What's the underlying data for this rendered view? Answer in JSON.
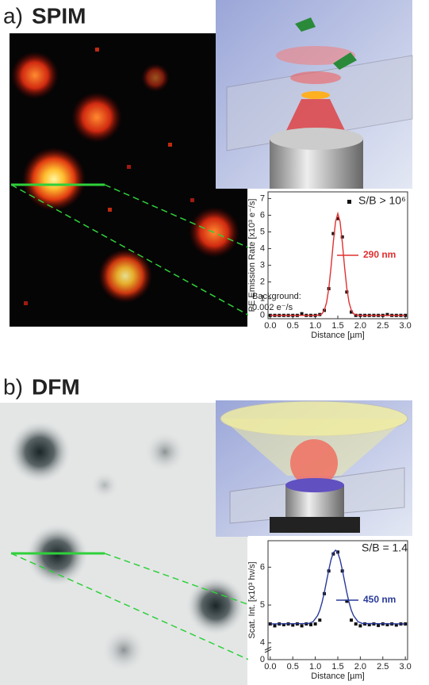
{
  "chart_data": [
    {
      "type": "line",
      "panel": "a)",
      "title": "SPIM",
      "xlabel": "Distance [µm]",
      "ylabel": "PE Emission Rate [x10³ e⁻/s]",
      "xlim": [
        -0.05,
        3.05
      ],
      "ylim": [
        -0.2,
        7.4
      ],
      "xticks": [
        {
          "value": 0,
          "label": "0.0"
        },
        {
          "value": 0.5,
          "label": "0.5"
        },
        {
          "value": 1,
          "label": "1.0"
        },
        {
          "value": 1.5,
          "label": "1.5"
        },
        {
          "value": 2,
          "label": "2.0"
        },
        {
          "value": 2.5,
          "label": "2.5"
        },
        {
          "value": 3,
          "label": "3.0"
        }
      ],
      "yticks": [
        0,
        1,
        2,
        3,
        4,
        5,
        6,
        7
      ],
      "series": [
        {
          "name": "S/B > 10⁶",
          "color": "#111111",
          "marker": "square",
          "x": [
            0,
            0.1,
            0.2,
            0.3,
            0.4,
            0.5,
            0.6,
            0.7,
            0.8,
            0.9,
            1.0,
            1.1,
            1.2,
            1.3,
            1.4,
            1.5,
            1.6,
            1.7,
            1.8,
            1.9,
            2.0,
            2.1,
            2.2,
            2.3,
            2.4,
            2.5,
            2.6,
            2.7,
            2.8,
            2.9,
            3.0
          ],
          "values": [
            0,
            0,
            0,
            0,
            0,
            0,
            0,
            0.1,
            0,
            0,
            0,
            0.05,
            0.3,
            1.6,
            4.9,
            5.8,
            4.7,
            1.4,
            0.2,
            0,
            0,
            0,
            0,
            0,
            0,
            0,
            0.05,
            0,
            0,
            0,
            0
          ]
        },
        {
          "color": "#e03030",
          "marker": "line",
          "x": [
            0,
            1.0,
            1.1,
            1.15,
            1.2,
            1.25,
            1.3,
            1.35,
            1.4,
            1.45,
            1.5,
            1.55,
            1.6,
            1.65,
            1.7,
            1.75,
            1.8,
            1.85,
            1.9,
            2.0,
            3.0
          ],
          "values": [
            0,
            0,
            0.03,
            0.1,
            0.31,
            0.77,
            1.62,
            2.9,
            4.38,
            5.61,
            6.1,
            5.61,
            4.38,
            2.9,
            1.62,
            0.77,
            0.31,
            0.1,
            0.03,
            0,
            0
          ]
        }
      ],
      "annotations": [
        "290 nm",
        "Background:",
        "0.002 e⁻/s"
      ]
    },
    {
      "type": "line",
      "panel": "b)",
      "title": "DFM",
      "xlabel": "Distance [µm]",
      "ylabel": "Scat. Int. [x10³ hν/s]",
      "xlim": [
        -0.05,
        3.05
      ],
      "ylim": [
        0,
        6.7
      ],
      "y_break": [
        0.25,
        3.85
      ],
      "xticks": [
        {
          "value": 0,
          "label": "0.0"
        },
        {
          "value": 0.5,
          "label": "0.5"
        },
        {
          "value": 1,
          "label": "1.0"
        },
        {
          "value": 1.5,
          "label": "1.5"
        },
        {
          "value": 2,
          "label": "2.0"
        },
        {
          "value": 2.5,
          "label": "2.5"
        },
        {
          "value": 3,
          "label": "3.0"
        }
      ],
      "yticks": [
        0,
        4,
        5,
        6
      ],
      "series": [
        {
          "color": "#111111",
          "marker": "square",
          "x": [
            0,
            0.1,
            0.2,
            0.3,
            0.4,
            0.5,
            0.6,
            0.7,
            0.8,
            0.9,
            1.0,
            1.1,
            1.2,
            1.3,
            1.4,
            1.5,
            1.6,
            1.7,
            1.8,
            1.9,
            2.0,
            2.1,
            2.2,
            2.3,
            2.4,
            2.5,
            2.6,
            2.7,
            2.8,
            2.9,
            3.0
          ],
          "values": [
            4.5,
            4.45,
            4.5,
            4.48,
            4.5,
            4.47,
            4.5,
            4.45,
            4.5,
            4.48,
            4.5,
            4.6,
            5.3,
            5.9,
            6.35,
            6.4,
            5.9,
            5.1,
            4.6,
            4.5,
            4.45,
            4.5,
            4.48,
            4.5,
            4.46,
            4.5,
            4.48,
            4.5,
            4.47,
            4.5,
            4.5
          ]
        },
        {
          "color": "#2a3a9a",
          "marker": "line",
          "x": [
            0,
            0.85,
            0.95,
            1.05,
            1.1,
            1.15,
            1.2,
            1.25,
            1.3,
            1.35,
            1.4,
            1.45,
            1.5,
            1.55,
            1.6,
            1.65,
            1.7,
            1.75,
            1.8,
            1.85,
            1.95,
            2.05,
            3.0
          ],
          "values": [
            4.5,
            4.51,
            4.56,
            4.72,
            4.86,
            5.07,
            5.33,
            5.63,
            5.93,
            6.2,
            6.38,
            6.45,
            6.38,
            6.2,
            5.93,
            5.63,
            5.33,
            5.07,
            4.86,
            4.72,
            4.56,
            4.51,
            4.5
          ]
        }
      ],
      "annotations": [
        "S/B = 1.4",
        "450 nm"
      ]
    }
  ]
}
